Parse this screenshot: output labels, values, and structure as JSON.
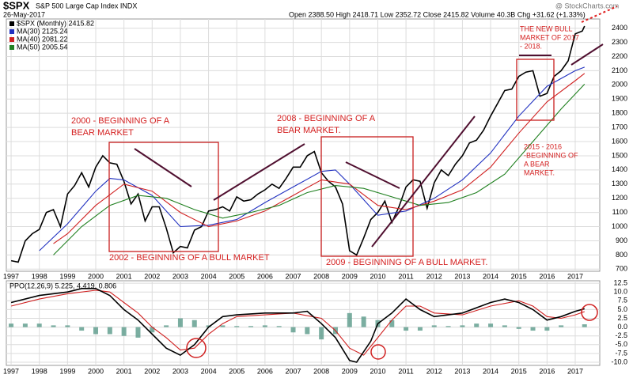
{
  "chart_data": [
    {
      "type": "line",
      "title": "$SPX",
      "subtitle": "S&P 500 Large Cap Index INDX",
      "date": "26-May-2017",
      "quote": "Open 2388.50  High 2418.71  Low 2352.72  Close 2415.82  Volume 40.3B  Chg +31.62 (+1.33%)",
      "source": "@ StockCharts.com",
      "xlim": [
        1996.83,
        2017.87
      ],
      "xticks": [
        1997,
        1998,
        1999,
        2000,
        2001,
        2002,
        2003,
        2004,
        2005,
        2006,
        2007,
        2008,
        2009,
        2010,
        2011,
        2012,
        2013,
        2014,
        2015,
        2016,
        2017
      ],
      "ylim": [
        685,
        2465
      ],
      "yticks": [
        700,
        800,
        900,
        1000,
        1100,
        1200,
        1300,
        1400,
        1500,
        1600,
        1700,
        1800,
        1900,
        2000,
        2100,
        2200,
        2300,
        2400
      ],
      "grid": true,
      "series": [
        {
          "name": "$SPX (Monthly) 2415.82",
          "color": "#000000",
          "x": [
            1997,
            1997.25,
            1997.5,
            1997.75,
            1998,
            1998.25,
            1998.5,
            1998.75,
            1999,
            1999.25,
            1999.5,
            1999.75,
            2000,
            2000.25,
            2000.5,
            2000.75,
            2001,
            2001.25,
            2001.5,
            2001.75,
            2002,
            2002.25,
            2002.5,
            2002.75,
            2003,
            2003.25,
            2003.5,
            2003.75,
            2004,
            2004.25,
            2004.5,
            2004.75,
            2005,
            2005.25,
            2005.5,
            2005.75,
            2006,
            2006.25,
            2006.5,
            2006.75,
            2007,
            2007.25,
            2007.5,
            2007.75,
            2008,
            2008.25,
            2008.5,
            2008.75,
            2009,
            2009.25,
            2009.5,
            2009.75,
            2010,
            2010.25,
            2010.5,
            2010.75,
            2011,
            2011.25,
            2011.5,
            2011.75,
            2012,
            2012.25,
            2012.5,
            2012.75,
            2013,
            2013.25,
            2013.5,
            2013.75,
            2014,
            2014.25,
            2014.5,
            2014.75,
            2015,
            2015.25,
            2015.5,
            2015.75,
            2016,
            2016.25,
            2016.5,
            2016.75,
            2017,
            2017.25,
            2017.33
          ],
          "values": [
            760,
            750,
            900,
            950,
            980,
            1100,
            1120,
            1000,
            1230,
            1290,
            1380,
            1280,
            1420,
            1500,
            1450,
            1440,
            1320,
            1160,
            1230,
            1040,
            1140,
            1140,
            990,
            815,
            860,
            850,
            975,
            1000,
            1110,
            1120,
            1140,
            1110,
            1210,
            1180,
            1190,
            1230,
            1260,
            1300,
            1270,
            1340,
            1420,
            1420,
            1500,
            1530,
            1380,
            1320,
            1280,
            1160,
            830,
            800,
            920,
            1050,
            1100,
            1180,
            1030,
            1140,
            1280,
            1330,
            1320,
            1130,
            1310,
            1400,
            1360,
            1440,
            1500,
            1590,
            1610,
            1680,
            1780,
            1870,
            1960,
            1970,
            2060,
            2090,
            2100,
            1920,
            1940,
            2060,
            2100,
            2170,
            2360,
            2380,
            2415
          ]
        },
        {
          "name": "MA(30) 2125.24",
          "color": "#2030c0",
          "x": [
            1998,
            1999,
            2000,
            2000.5,
            2001,
            2002,
            2003,
            2004,
            2005,
            2006,
            2007,
            2008,
            2008.5,
            2009,
            2010,
            2011,
            2012,
            2013,
            2014,
            2015,
            2016,
            2017,
            2017.33
          ],
          "values": [
            830,
            1020,
            1250,
            1340,
            1330,
            1220,
            1000,
            1010,
            1050,
            1170,
            1280,
            1390,
            1400,
            1300,
            1080,
            1110,
            1200,
            1330,
            1520,
            1780,
            1990,
            2100,
            2125
          ]
        },
        {
          "name": "MA(40) 2081.22",
          "color": "#d02020",
          "x": [
            1998.5,
            1999,
            2000,
            2001,
            2002,
            2003,
            2004,
            2005,
            2006,
            2007,
            2008,
            2009,
            2010,
            2011,
            2012,
            2013,
            2014,
            2015,
            2016,
            2017,
            2017.33
          ],
          "values": [
            880,
            950,
            1150,
            1300,
            1250,
            1100,
            1000,
            1040,
            1110,
            1220,
            1330,
            1300,
            1150,
            1120,
            1180,
            1260,
            1420,
            1660,
            1880,
            2030,
            2081
          ]
        },
        {
          "name": "MA(50) 2005.54",
          "color": "#208020",
          "x": [
            1998.5,
            1999.5,
            2000.5,
            2001.5,
            2002.5,
            2003.5,
            2004.5,
            2005.5,
            2006.5,
            2007.5,
            2008.5,
            2009.5,
            2010.5,
            2011.5,
            2012.5,
            2013.5,
            2014.5,
            2015.5,
            2016.5,
            2017.33
          ],
          "values": [
            800,
            1000,
            1150,
            1220,
            1200,
            1120,
            1060,
            1100,
            1150,
            1240,
            1290,
            1270,
            1210,
            1150,
            1170,
            1240,
            1370,
            1600,
            1830,
            2005
          ]
        }
      ],
      "annotations": [
        {
          "lines": [
            "2000 - BEGINNING OF A",
            "BEAR MARKET"
          ]
        },
        {
          "lines": [
            "2002 - BEGINNING OF A BULL MARKET"
          ]
        },
        {
          "lines": [
            "2008 - BEGINNING OF A",
            "BEAR MARKET."
          ]
        },
        {
          "lines": [
            "2009 - BEGINNING OF A BULL MARKET."
          ]
        },
        {
          "lines": [
            "THE NEW BULL",
            "MARKET OF 2017",
            "- 2018."
          ]
        },
        {
          "lines": [
            "2015 - 2016",
            "-BEGINNING OF",
            "A BEAR",
            "MARKET."
          ]
        }
      ]
    },
    {
      "type": "line",
      "label": "PPO(12,26,9) 5.225, 4.419, 0.806",
      "xlim": [
        1996.83,
        2017.87
      ],
      "xticks": [
        1997,
        1998,
        1999,
        2000,
        2001,
        2002,
        2003,
        2004,
        2005,
        2006,
        2007,
        2008,
        2009,
        2010,
        2011,
        2012,
        2013,
        2014,
        2015,
        2016,
        2017
      ],
      "ylim": [
        -10.9,
        13.2
      ],
      "yticks": [
        12.5,
        {
          "value": 10,
          "label": "10.0"
        },
        7.5,
        {
          "value": 5,
          "label": "5.0"
        },
        2.5,
        {
          "value": 0,
          "label": "0.0"
        },
        -2.5,
        {
          "value": -5,
          "label": "-5.0"
        },
        -7.5,
        {
          "value": -10,
          "label": "-10.0"
        }
      ],
      "grid": true,
      "series": [
        {
          "type": "bar",
          "color": "#5a9a8a",
          "x": [
            1997,
            1997.5,
            1998,
            1998.5,
            1999,
            1999.5,
            2000,
            2000.5,
            2001,
            2001.5,
            2002,
            2002.5,
            2003,
            2003.5,
            2004,
            2004.5,
            2005,
            2005.5,
            2006,
            2006.5,
            2007,
            2007.5,
            2008,
            2008.5,
            2009,
            2009.5,
            2010,
            2010.5,
            2011,
            2011.5,
            2012,
            2012.5,
            2013,
            2013.5,
            2014,
            2014.5,
            2015,
            2015.5,
            2016,
            2016.5,
            2017.33
          ],
          "values": [
            1,
            1,
            1,
            0.5,
            0.5,
            -1,
            -2,
            -2,
            -2.5,
            -3,
            -1.5,
            0.5,
            2.5,
            2,
            0.5,
            0.5,
            0.3,
            0.3,
            0.5,
            0.3,
            -1.5,
            -2,
            -3.5,
            -2,
            4,
            3,
            2,
            2,
            -1,
            -1,
            0.5,
            0.3,
            0.5,
            1,
            1,
            0.5,
            -0.5,
            -1,
            -1,
            0.5,
            0.806
          ]
        },
        {
          "type": "line",
          "color": "#d02020",
          "x": [
            1997,
            1998,
            1999,
            2000,
            2000.5,
            2001,
            2001.5,
            2002,
            2002.5,
            2003,
            2003.5,
            2004,
            2004.5,
            2005,
            2006,
            2007,
            2008,
            2008.5,
            2009,
            2009.5,
            2010,
            2010.5,
            2011,
            2011.5,
            2012,
            2013,
            2014,
            2015,
            2015.5,
            2016,
            2016.5,
            2017,
            2017.33
          ],
          "values": [
            6,
            8,
            9.5,
            10.5,
            10,
            7,
            4,
            0,
            -3,
            -6.5,
            -6,
            -2,
            1,
            3,
            3.5,
            4,
            2.5,
            -1,
            -6,
            -8,
            -3,
            2,
            6,
            6,
            4,
            3.5,
            6,
            7.5,
            6,
            3,
            2.5,
            3.5,
            4.419
          ]
        },
        {
          "type": "line",
          "color": "#000000",
          "x": [
            1997,
            1998,
            1999,
            1999.5,
            2000,
            2000.5,
            2001,
            2001.5,
            2002,
            2002.5,
            2003,
            2003.5,
            2004,
            2004.5,
            2005,
            2006,
            2007,
            2007.5,
            2008,
            2008.5,
            2009,
            2009.25,
            2009.75,
            2010,
            2010.5,
            2011,
            2011.5,
            2012,
            2013,
            2014,
            2014.5,
            2015,
            2015.5,
            2016,
            2016.5,
            2017,
            2017.33
          ],
          "values": [
            7,
            9,
            10,
            11,
            11,
            9,
            5,
            2,
            -2,
            -6,
            -8,
            -5,
            0,
            3,
            3.5,
            4,
            4,
            4.5,
            1,
            -3,
            -9.5,
            -10,
            -4,
            1,
            4,
            8,
            5,
            3,
            4,
            7,
            8,
            7,
            5,
            2,
            3,
            4.5,
            5.225
          ]
        }
      ]
    }
  ]
}
